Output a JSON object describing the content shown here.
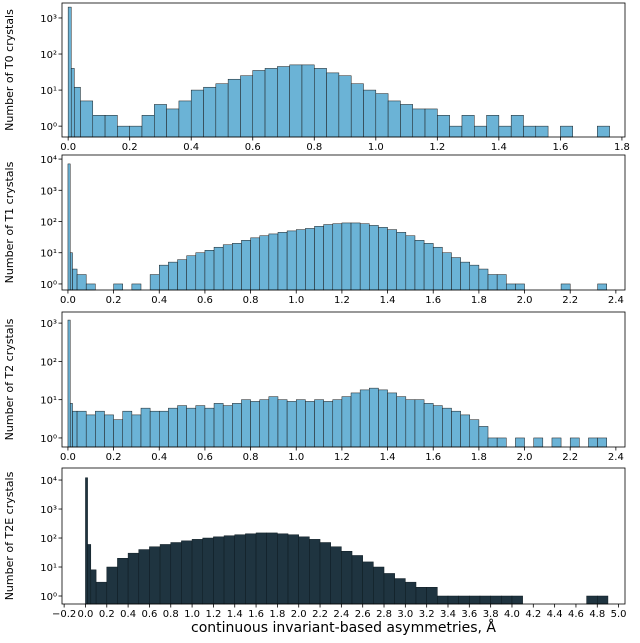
{
  "chart_data": [
    {
      "type": "histogram",
      "ylabel": "Number of T0 crystals",
      "color": "#6bb3d6",
      "edgecolor": "#1a1a1a",
      "log_scale": true,
      "bins": [
        0,
        0.01,
        0.02,
        0.04,
        0.08,
        0.12,
        0.16,
        0.2,
        0.24,
        0.28,
        0.32,
        0.36,
        0.4,
        0.44,
        0.48,
        0.52,
        0.56,
        0.6,
        0.64,
        0.68,
        0.72,
        0.76,
        0.8,
        0.84,
        0.88,
        0.92,
        0.96,
        1.0,
        1.04,
        1.08,
        1.12,
        1.16,
        1.2,
        1.24,
        1.28,
        1.32,
        1.36,
        1.4,
        1.44,
        1.48,
        1.52,
        1.56,
        1.6,
        1.64,
        1.68,
        1.72,
        1.76
      ],
      "values": [
        2000,
        40,
        12,
        5,
        2,
        2,
        1,
        1,
        2,
        4,
        3,
        5,
        10,
        12,
        15,
        20,
        25,
        35,
        40,
        45,
        50,
        50,
        40,
        30,
        25,
        15,
        10,
        8,
        5,
        4,
        3,
        3,
        2,
        1,
        2,
        1,
        2,
        1,
        2,
        1,
        1,
        0,
        1,
        0,
        0,
        1
      ],
      "xlim": [
        -0.02,
        1.81
      ],
      "ylim": [
        0.5,
        2600
      ],
      "xticks": [
        {
          "value": 0,
          "label": "0.0"
        },
        0.2,
        0.4,
        0.6,
        0.8,
        {
          "value": 1,
          "label": "1.0"
        },
        1.2,
        1.4,
        1.6,
        1.8
      ],
      "yticks": [
        {
          "value": 1,
          "label": "10⁰"
        },
        {
          "value": 10,
          "label": "10¹"
        },
        {
          "value": 100,
          "label": "10²"
        },
        {
          "value": 1000,
          "label": "10³"
        }
      ]
    },
    {
      "type": "histogram",
      "ylabel": "Number of T1 crystals",
      "color": "#6bb3d6",
      "edgecolor": "#1a1a1a",
      "log_scale": true,
      "bins": [
        0,
        0.01,
        0.02,
        0.04,
        0.08,
        0.12,
        0.16,
        0.2,
        0.24,
        0.28,
        0.32,
        0.36,
        0.4,
        0.44,
        0.48,
        0.52,
        0.56,
        0.6,
        0.64,
        0.68,
        0.72,
        0.76,
        0.8,
        0.84,
        0.88,
        0.92,
        0.96,
        1.0,
        1.04,
        1.08,
        1.12,
        1.16,
        1.2,
        1.24,
        1.28,
        1.32,
        1.36,
        1.4,
        1.44,
        1.48,
        1.52,
        1.56,
        1.6,
        1.64,
        1.68,
        1.72,
        1.76,
        1.8,
        1.84,
        1.88,
        1.92,
        1.96,
        2.0,
        2.04,
        2.08,
        2.12,
        2.16,
        2.2,
        2.24,
        2.28,
        2.32,
        2.36,
        2.4
      ],
      "values": [
        7000,
        10,
        3,
        2,
        1,
        0,
        0,
        1,
        0,
        1,
        0,
        2,
        4,
        5,
        6,
        8,
        10,
        12,
        15,
        18,
        20,
        25,
        30,
        35,
        40,
        45,
        50,
        55,
        60,
        70,
        80,
        85,
        90,
        90,
        85,
        75,
        65,
        55,
        45,
        35,
        25,
        20,
        15,
        10,
        7,
        5,
        4,
        3,
        2,
        2,
        1,
        1,
        0,
        0,
        0,
        0,
        1,
        0,
        0,
        0,
        1,
        0
      ],
      "xlim": [
        -0.026,
        2.44
      ],
      "ylim": [
        0.64,
        13500
      ],
      "xticks": [
        {
          "value": 0,
          "label": "0.0"
        },
        0.2,
        0.4,
        0.6,
        0.8,
        {
          "value": 1,
          "label": "1.0"
        },
        1.2,
        1.4,
        1.6,
        1.8,
        {
          "value": 2,
          "label": "2.0"
        },
        2.2,
        2.4
      ],
      "yticks": [
        {
          "value": 1,
          "label": "10⁰"
        },
        {
          "value": 10,
          "label": "10¹"
        },
        {
          "value": 100,
          "label": "10²"
        },
        {
          "value": 1000,
          "label": "10³"
        },
        {
          "value": 10000,
          "label": "10⁴"
        }
      ]
    },
    {
      "type": "histogram",
      "ylabel": "Number of T2 crystals",
      "color": "#6bb3d6",
      "edgecolor": "#1a1a1a",
      "log_scale": true,
      "bins": [
        0,
        0.01,
        0.02,
        0.04,
        0.08,
        0.12,
        0.16,
        0.2,
        0.24,
        0.28,
        0.32,
        0.36,
        0.4,
        0.44,
        0.48,
        0.52,
        0.56,
        0.6,
        0.64,
        0.68,
        0.72,
        0.76,
        0.8,
        0.84,
        0.88,
        0.92,
        0.96,
        1.0,
        1.04,
        1.08,
        1.12,
        1.16,
        1.2,
        1.24,
        1.28,
        1.32,
        1.36,
        1.4,
        1.44,
        1.48,
        1.52,
        1.56,
        1.6,
        1.64,
        1.68,
        1.72,
        1.76,
        1.8,
        1.84,
        1.88,
        1.92,
        1.96,
        2.0,
        2.04,
        2.08,
        2.12,
        2.16,
        2.2,
        2.24,
        2.28,
        2.32,
        2.36,
        2.4
      ],
      "values": [
        1200,
        8,
        5,
        5,
        4,
        5,
        4,
        3,
        5,
        4,
        6,
        5,
        5,
        6,
        7,
        6,
        7,
        6,
        8,
        7,
        8,
        10,
        9,
        10,
        12,
        10,
        9,
        10,
        9,
        10,
        9,
        10,
        12,
        15,
        18,
        20,
        18,
        15,
        12,
        10,
        10,
        8,
        7,
        6,
        5,
        4,
        3,
        2,
        1,
        1,
        0,
        1,
        0,
        1,
        0,
        1,
        0,
        1,
        0,
        1,
        1,
        0
      ],
      "xlim": [
        -0.026,
        2.44
      ],
      "ylim": [
        0.58,
        1950
      ],
      "xticks": [
        {
          "value": 0,
          "label": "0.0"
        },
        0.2,
        0.4,
        0.6,
        0.8,
        {
          "value": 1,
          "label": "1.0"
        },
        1.2,
        1.4,
        1.6,
        1.8,
        {
          "value": 2,
          "label": "2.0"
        },
        2.2,
        2.4
      ],
      "yticks": [
        {
          "value": 1,
          "label": "10⁰"
        },
        {
          "value": 10,
          "label": "10¹"
        },
        {
          "value": 100,
          "label": "10²"
        },
        {
          "value": 1000,
          "label": "10³"
        }
      ]
    },
    {
      "type": "histogram",
      "ylabel": "Number of T2E crystals",
      "xlabel": "continuous invariant-based asymmetries, Å",
      "color": "#1f3440",
      "edgecolor": "#0d1a20",
      "log_scale": true,
      "bins": [
        0,
        0.02,
        0.05,
        0.1,
        0.2,
        0.3,
        0.4,
        0.5,
        0.6,
        0.7,
        0.8,
        0.9,
        1.0,
        1.1,
        1.2,
        1.3,
        1.4,
        1.5,
        1.6,
        1.7,
        1.8,
        1.9,
        2.0,
        2.1,
        2.2,
        2.3,
        2.4,
        2.5,
        2.6,
        2.7,
        2.8,
        2.9,
        3.0,
        3.1,
        3.2,
        3.3,
        3.4,
        3.5,
        3.6,
        3.7,
        3.8,
        3.9,
        4.0,
        4.1,
        4.2,
        4.3,
        4.4,
        4.5,
        4.6,
        4.7,
        4.8,
        4.9,
        5.0
      ],
      "values": [
        12000,
        60,
        8,
        3,
        10,
        20,
        30,
        40,
        50,
        60,
        70,
        80,
        90,
        100,
        110,
        120,
        130,
        140,
        150,
        150,
        140,
        130,
        110,
        90,
        70,
        50,
        35,
        25,
        15,
        10,
        6,
        4,
        3,
        2,
        2,
        1,
        1,
        1,
        1,
        1,
        1,
        1,
        1,
        0,
        0,
        0,
        0,
        0,
        0,
        1,
        1,
        0
      ],
      "xlim": [
        -0.22,
        5.06
      ],
      "ylim": [
        0.53,
        26000
      ],
      "xticks": [
        {
          "value": -0.2,
          "label": "−0.2"
        },
        {
          "value": 0,
          "label": "0.0"
        },
        0.2,
        0.4,
        0.6,
        0.8,
        {
          "value": 1,
          "label": "1.0"
        },
        1.2,
        1.4,
        1.6,
        1.8,
        {
          "value": 2,
          "label": "2.0"
        },
        2.2,
        2.4,
        2.6,
        2.8,
        {
          "value": 3,
          "label": "3.0"
        },
        3.2,
        3.4,
        3.6,
        3.8,
        {
          "value": 4,
          "label": "4.0"
        },
        4.2,
        4.4,
        4.6,
        4.8,
        {
          "value": 5,
          "label": "5.0"
        }
      ],
      "yticks": [
        {
          "value": 1,
          "label": "10⁰"
        },
        {
          "value": 10,
          "label": "10¹"
        },
        {
          "value": 100,
          "label": "10²"
        },
        {
          "value": 1000,
          "label": "10³"
        },
        {
          "value": 10000,
          "label": "10⁴"
        }
      ]
    }
  ]
}
